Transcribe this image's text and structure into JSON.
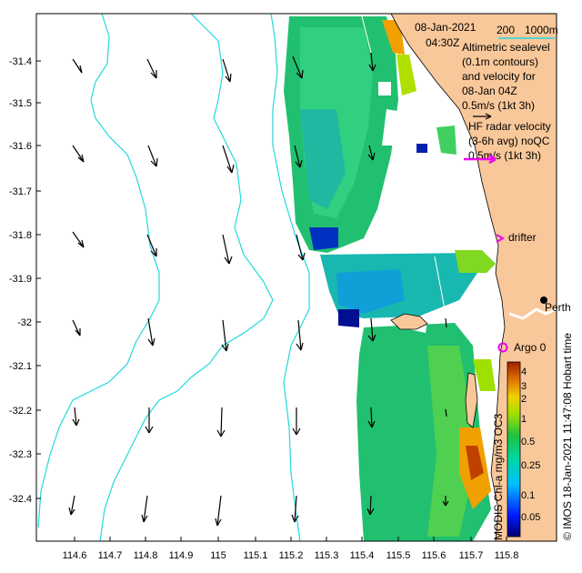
{
  "map": {
    "date": "08-Jan-2021",
    "time": "04:30Z",
    "scale_labels": [
      "200",
      "1000m"
    ],
    "legend_altimetric": [
      "Altimetric sealevel",
      "(0.1m contours)",
      "and velocity for",
      "08-Jan 04Z",
      "0.5m/s (1kt 3h)"
    ],
    "legend_hf": [
      "HF radar velocity",
      "(3-6h avg) noQC",
      "0.5m/s (1kt 3h)"
    ],
    "drifter_label": "drifter",
    "city_label": "Perth",
    "argo_label": "Argo 0",
    "credit": "© IMOS 18-Jan-2021 11:47:08 Hobart time",
    "colorbar_title": "MODIS Chl-a mg/m3 OC3",
    "colorbar_ticks": [
      "4",
      "3",
      "2",
      "1",
      "0.5",
      "0.25",
      "0.1",
      "0.05"
    ],
    "lat_ticks": [
      "-31.4",
      "-31.5",
      "-31.6",
      "-31.7",
      "-31.8",
      "-31.9",
      "-32",
      "-32.1",
      "-32.2",
      "-32.3",
      "-32.4"
    ],
    "lon_ticks": [
      "114.6",
      "114.7",
      "114.8",
      "114.9",
      "115",
      "115.1",
      "115.2",
      "115.3",
      "115.4",
      "115.5",
      "115.6",
      "115.7",
      "115.8"
    ],
    "colors": {
      "land": "#f9c89a",
      "contour": "#22d8e0",
      "drifter": "#ee00ee",
      "arrow": "#000000"
    },
    "icons": [
      "north-arrow-icon",
      "drifter-icon",
      "argo-icon",
      "city-marker-icon"
    ]
  }
}
